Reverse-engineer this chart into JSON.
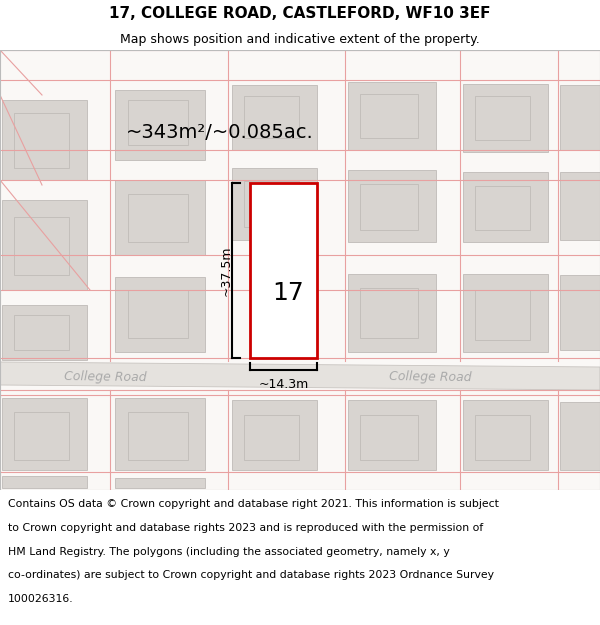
{
  "title": "17, COLLEGE ROAD, CASTLEFORD, WF10 3EF",
  "subtitle": "Map shows position and indicative extent of the property.",
  "area_label": "~343m²/~0.085ac.",
  "width_label": "~14.3m",
  "height_label": "~37.5m",
  "property_number": "17",
  "road_label_left": "College Road",
  "road_label_right": "ollege Road",
  "footer_lines": [
    "Contains OS data © Crown copyright and database right 2021. This information is subject",
    "to Crown copyright and database rights 2023 and is reproduced with the permission of",
    "HM Land Registry. The polygons (including the associated geometry, namely x, y",
    "co-ordinates) are subject to Crown copyright and database rights 2023 Ordnance Survey",
    "100026316."
  ],
  "bg_white": "#ffffff",
  "map_bg": "#f5f0ed",
  "road_fill": "#e5e2de",
  "road_edge": "#c8c4c0",
  "building_fill": "#d8d4d0",
  "building_edge": "#bfbbb7",
  "plot_color": "#cc0000",
  "parcel_color": "#e8a0a0",
  "dim_color": "#000000",
  "road_text_color": "#aaaaaa",
  "title_fontsize": 11,
  "subtitle_fontsize": 9,
  "footer_fontsize": 7.8,
  "area_fontsize": 14,
  "number_fontsize": 18,
  "dim_fontsize": 9,
  "road_fontsize": 9
}
